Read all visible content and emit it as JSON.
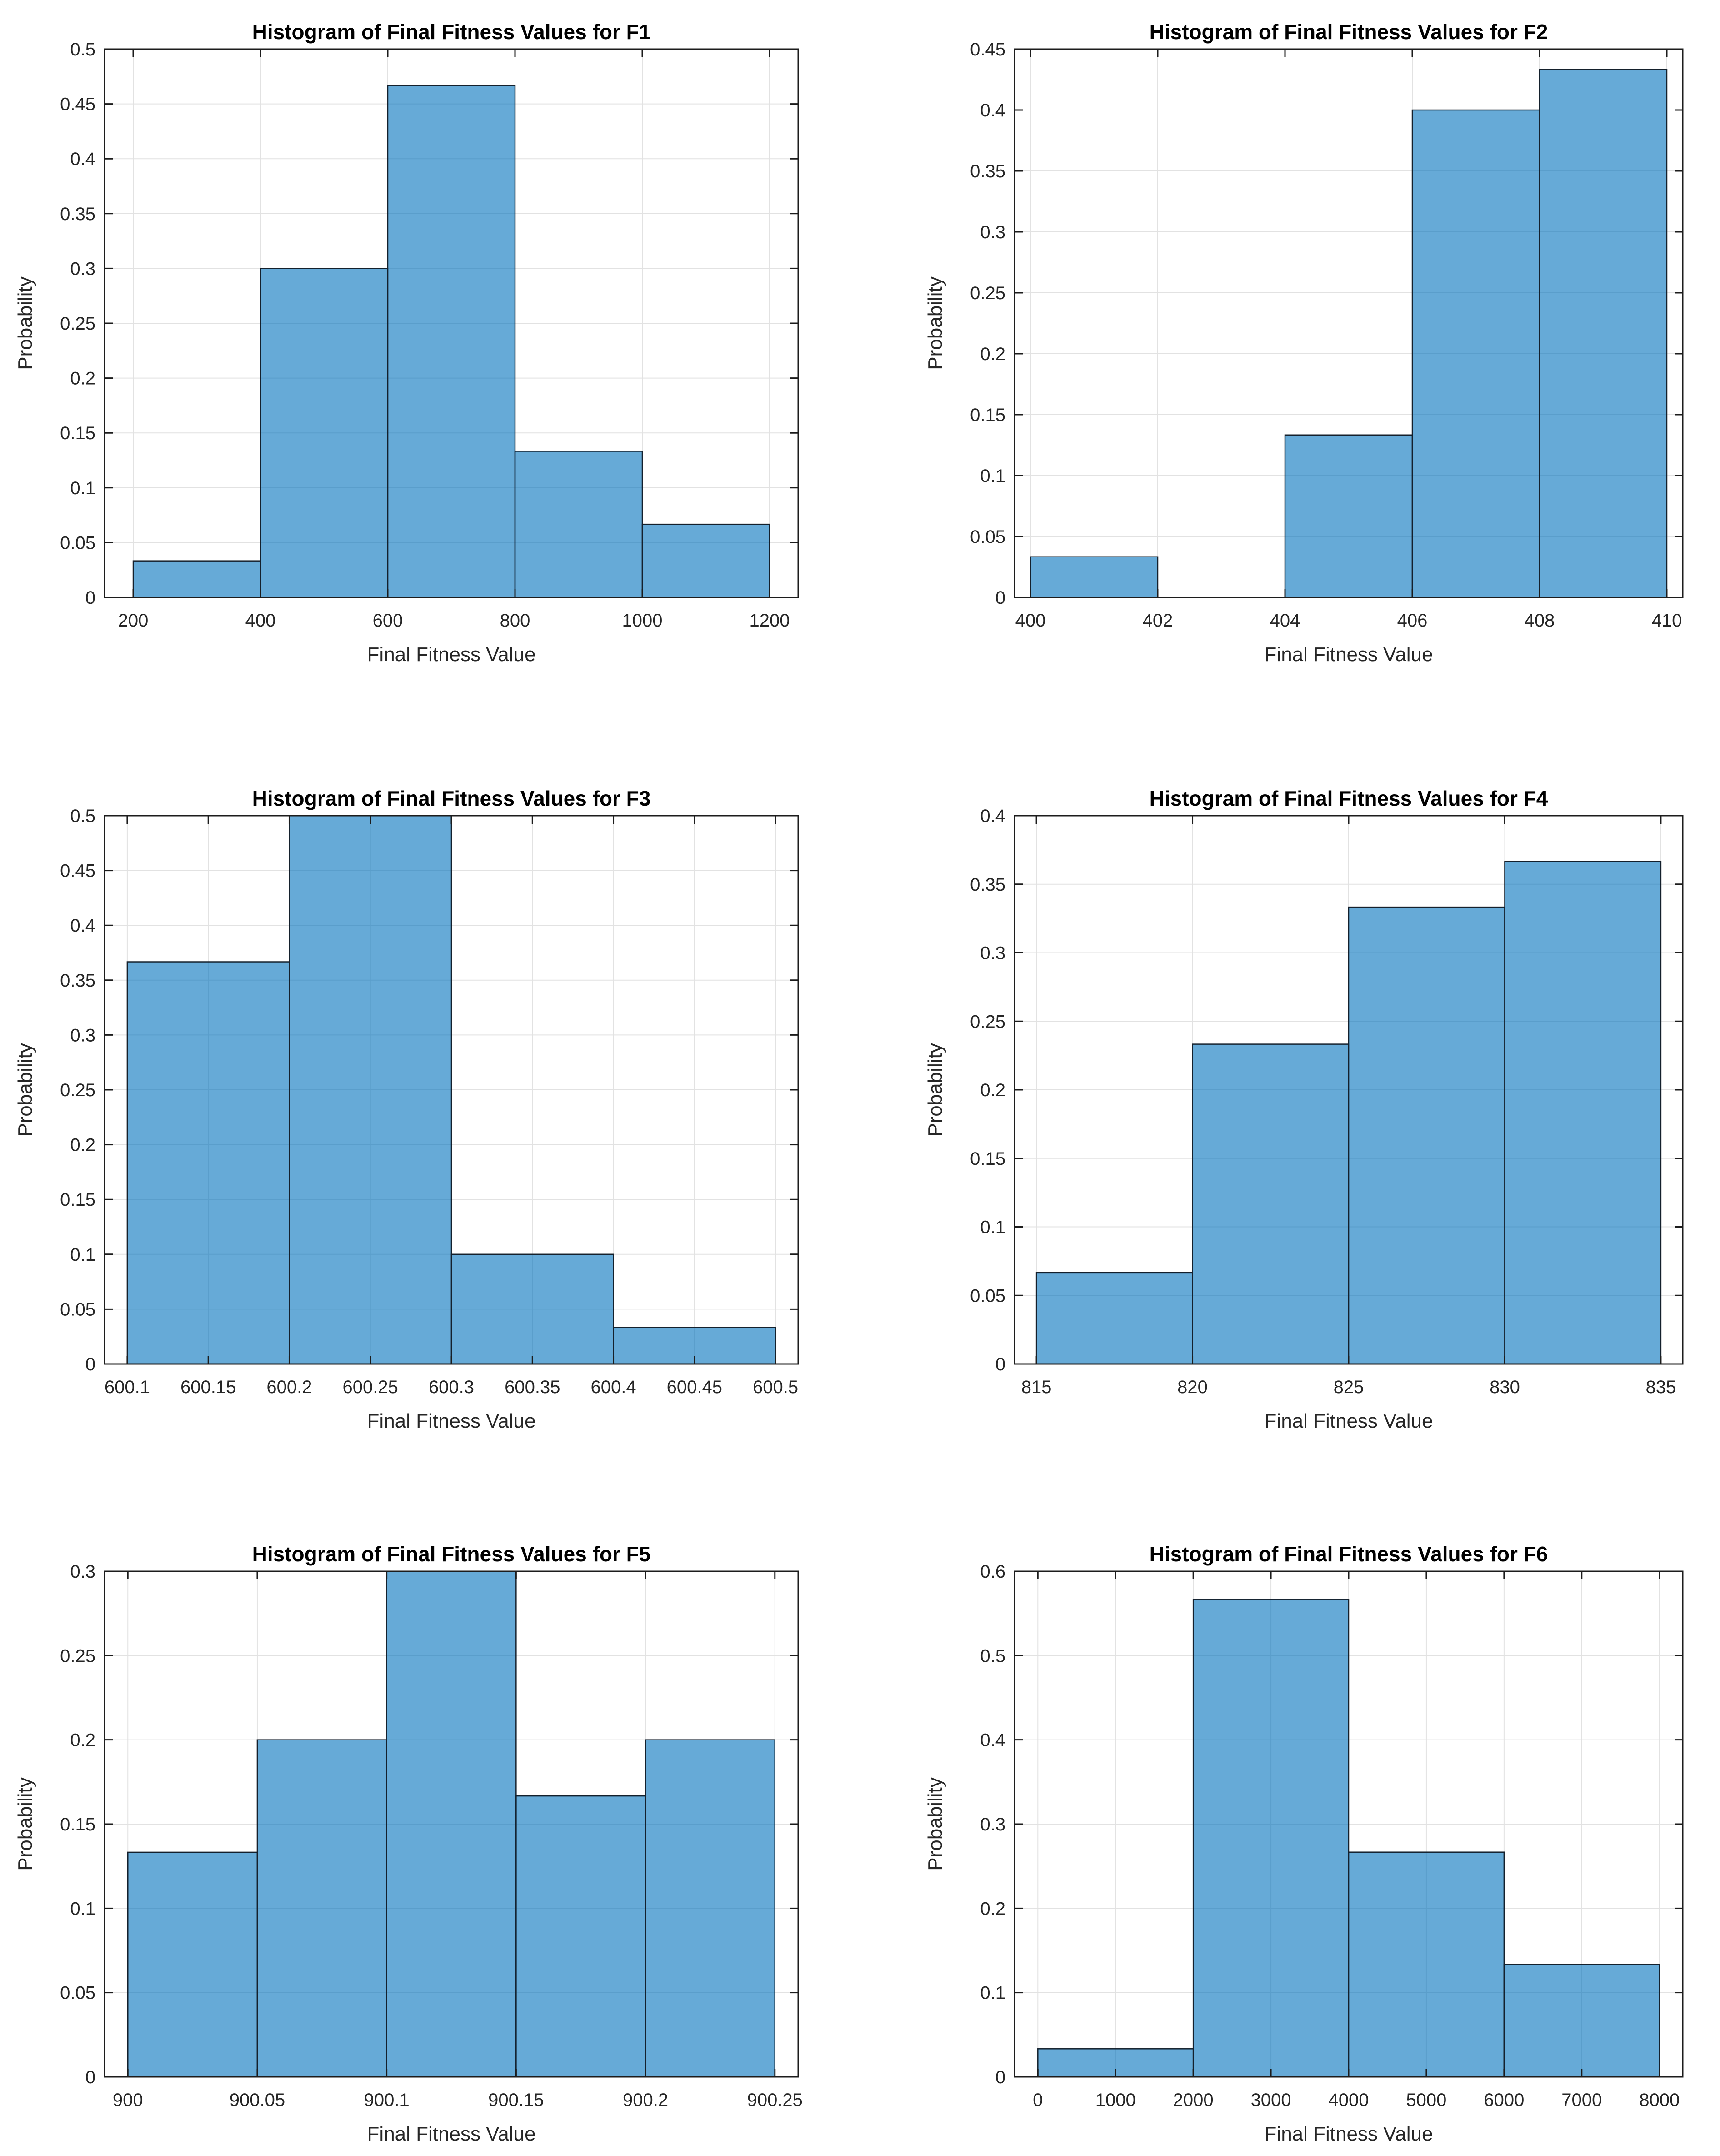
{
  "figure": {
    "background": "#ffffff"
  },
  "style": {
    "bar_face": "#0072BD",
    "bar_face_alpha": 0.6,
    "bar_edge": "#14202c",
    "grid_color": "#e2e2e2",
    "axis_color": "#1c1c1c",
    "tick_text_color": "#262626",
    "title_color": "#000000"
  },
  "chart_data": [
    {
      "type": "bar",
      "id": "F1",
      "title": "Histogram of Final Fitness Values for F1",
      "xlabel": "Final Fitness Value",
      "ylabel": "Probability",
      "bins": [
        [
          200,
          400,
          0.0333
        ],
        [
          400,
          600,
          0.3
        ],
        [
          600,
          800,
          0.4667
        ],
        [
          800,
          1000,
          0.1333
        ],
        [
          1000,
          1200,
          0.0667
        ]
      ],
      "xlim": [
        155,
        1245
      ],
      "ylim": [
        0,
        0.5
      ],
      "x_tick_vals": [
        200,
        400,
        600,
        800,
        1000,
        1200
      ],
      "x_tick_labels": [
        "200",
        "400",
        "600",
        "800",
        "1000",
        "1200"
      ],
      "y_tick_vals": [
        0,
        0.05,
        0.1,
        0.15,
        0.2,
        0.25,
        0.3,
        0.35,
        0.4,
        0.45,
        0.5
      ],
      "y_tick_labels": [
        "0",
        "0.05",
        "0.1",
        "0.15",
        "0.2",
        "0.25",
        "0.3",
        "0.35",
        "0.4",
        "0.45",
        "0.5"
      ],
      "grid": true,
      "legend": "none"
    },
    {
      "type": "bar",
      "id": "F2",
      "title": "Histogram of Final Fitness Values for F2",
      "xlabel": "Final Fitness Value",
      "ylabel": "Probability",
      "bins": [
        [
          400,
          402,
          0.0333
        ],
        [
          404,
          406,
          0.1333
        ],
        [
          406,
          408,
          0.4
        ],
        [
          408,
          410,
          0.4333
        ]
      ],
      "xlim": [
        399.75,
        410.25
      ],
      "ylim": [
        0,
        0.45
      ],
      "x_tick_vals": [
        400,
        402,
        404,
        406,
        408,
        410
      ],
      "x_tick_labels": [
        "400",
        "402",
        "404",
        "406",
        "408",
        "410"
      ],
      "y_tick_vals": [
        0,
        0.05,
        0.1,
        0.15,
        0.2,
        0.25,
        0.3,
        0.35,
        0.4,
        0.45
      ],
      "y_tick_labels": [
        "0",
        "0.05",
        "0.1",
        "0.15",
        "0.2",
        "0.25",
        "0.3",
        "0.35",
        "0.4",
        "0.45"
      ],
      "grid": true,
      "legend": "none"
    },
    {
      "type": "bar",
      "id": "F3",
      "title": "Histogram of Final Fitness Values for F3",
      "xlabel": "Final Fitness Value",
      "ylabel": "Probability",
      "bins": [
        [
          600.1,
          600.2,
          0.3667
        ],
        [
          600.2,
          600.3,
          0.5
        ],
        [
          600.3,
          600.4,
          0.1
        ],
        [
          600.4,
          600.5,
          0.0333
        ]
      ],
      "xlim": [
        600.086,
        600.514
      ],
      "ylim": [
        0,
        0.5
      ],
      "x_tick_vals": [
        600.1,
        600.15,
        600.2,
        600.25,
        600.3,
        600.35,
        600.4,
        600.45,
        600.5
      ],
      "x_tick_labels": [
        "600.1",
        "600.15",
        "600.2",
        "600.25",
        "600.3",
        "600.35",
        "600.4",
        "600.45",
        "600.5"
      ],
      "y_tick_vals": [
        0,
        0.05,
        0.1,
        0.15,
        0.2,
        0.25,
        0.3,
        0.35,
        0.4,
        0.45,
        0.5
      ],
      "y_tick_labels": [
        "0",
        "0.05",
        "0.1",
        "0.15",
        "0.2",
        "0.25",
        "0.3",
        "0.35",
        "0.4",
        "0.45",
        "0.5"
      ],
      "grid": true,
      "legend": "none"
    },
    {
      "type": "bar",
      "id": "F4",
      "title": "Histogram of Final Fitness Values for F4",
      "xlabel": "Final Fitness Value",
      "ylabel": "Probability",
      "bins": [
        [
          815,
          820,
          0.0667
        ],
        [
          820,
          825,
          0.2333
        ],
        [
          825,
          830,
          0.3333
        ],
        [
          830,
          835,
          0.3667
        ]
      ],
      "xlim": [
        814.3,
        835.7
      ],
      "ylim": [
        0,
        0.4
      ],
      "x_tick_vals": [
        815,
        820,
        825,
        830,
        835
      ],
      "x_tick_labels": [
        "815",
        "820",
        "825",
        "830",
        "835"
      ],
      "y_tick_vals": [
        0,
        0.05,
        0.1,
        0.15,
        0.2,
        0.25,
        0.3,
        0.35,
        0.4
      ],
      "y_tick_labels": [
        "0",
        "0.05",
        "0.1",
        "0.15",
        "0.2",
        "0.25",
        "0.3",
        "0.35",
        "0.4"
      ],
      "grid": true,
      "legend": "none"
    },
    {
      "type": "bar",
      "id": "F5",
      "title": "Histogram of Final Fitness Values for F5",
      "xlabel": "Final Fitness Value",
      "ylabel": "Probability",
      "bins": [
        [
          900,
          900.05,
          0.1333
        ],
        [
          900.05,
          900.1,
          0.2
        ],
        [
          900.1,
          900.15,
          0.3
        ],
        [
          900.15,
          900.2,
          0.1667
        ],
        [
          900.2,
          900.25,
          0.2
        ]
      ],
      "xlim": [
        899.991,
        900.259
      ],
      "ylim": [
        0,
        0.3
      ],
      "x_tick_vals": [
        900,
        900.05,
        900.1,
        900.15,
        900.2,
        900.25
      ],
      "x_tick_labels": [
        "900",
        "900.05",
        "900.1",
        "900.15",
        "900.2",
        "900.25"
      ],
      "y_tick_vals": [
        0,
        0.05,
        0.1,
        0.15,
        0.2,
        0.25,
        0.3
      ],
      "y_tick_labels": [
        "0",
        "0.05",
        "0.1",
        "0.15",
        "0.2",
        "0.25",
        "0.3"
      ],
      "grid": true,
      "legend": "none"
    },
    {
      "type": "bar",
      "id": "F6",
      "title": "Histogram of Final Fitness Values for F6",
      "xlabel": "Final Fitness Value",
      "ylabel": "Probability",
      "bins": [
        [
          0,
          2000,
          0.0333
        ],
        [
          2000,
          4000,
          0.5667
        ],
        [
          4000,
          6000,
          0.2667
        ],
        [
          6000,
          8000,
          0.1333
        ]
      ],
      "xlim": [
        -300,
        8300
      ],
      "ylim": [
        0,
        0.6
      ],
      "x_tick_vals": [
        0,
        1000,
        2000,
        3000,
        4000,
        5000,
        6000,
        7000,
        8000
      ],
      "x_tick_labels": [
        "0",
        "1000",
        "2000",
        "3000",
        "4000",
        "5000",
        "6000",
        "7000",
        "8000"
      ],
      "y_tick_vals": [
        0,
        0.1,
        0.2,
        0.3,
        0.4,
        0.5,
        0.6
      ],
      "y_tick_labels": [
        "0",
        "0.1",
        "0.2",
        "0.3",
        "0.4",
        "0.5",
        "0.6"
      ],
      "grid": true,
      "legend": "none"
    }
  ]
}
